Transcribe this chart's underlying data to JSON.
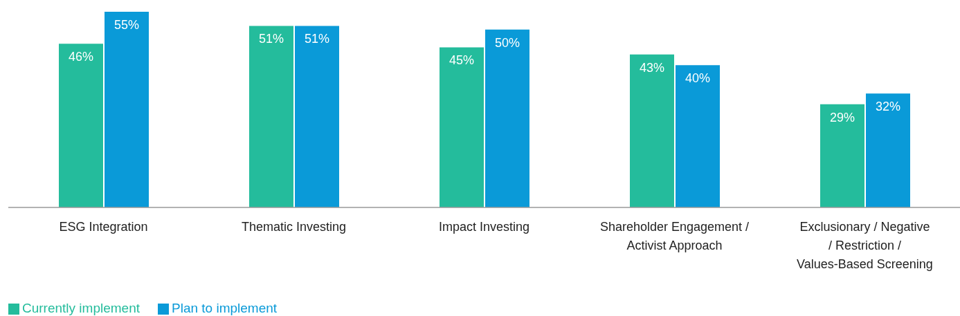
{
  "chart_data": {
    "type": "bar",
    "categories": [
      "ESG Integration",
      "Thematic Investing",
      "Impact Investing",
      "Shareholder Engagement / Activist Approach",
      "Exclusionary / Negative / Restriction / Values-Based Screening"
    ],
    "series": [
      {
        "name": "Currently implement",
        "color": "#24bc9c",
        "values": [
          46,
          51,
          45,
          43,
          29
        ],
        "value_labels": [
          "46%",
          "51%",
          "45%",
          "43%",
          "29%"
        ]
      },
      {
        "name": "Plan to implement",
        "color": "#0a9ad8",
        "values": [
          55,
          51,
          50,
          40,
          32
        ],
        "value_labels": [
          "55%",
          "51%",
          "50%",
          "40%",
          "32%"
        ]
      }
    ],
    "legend": "bottom left",
    "grid": false
  }
}
